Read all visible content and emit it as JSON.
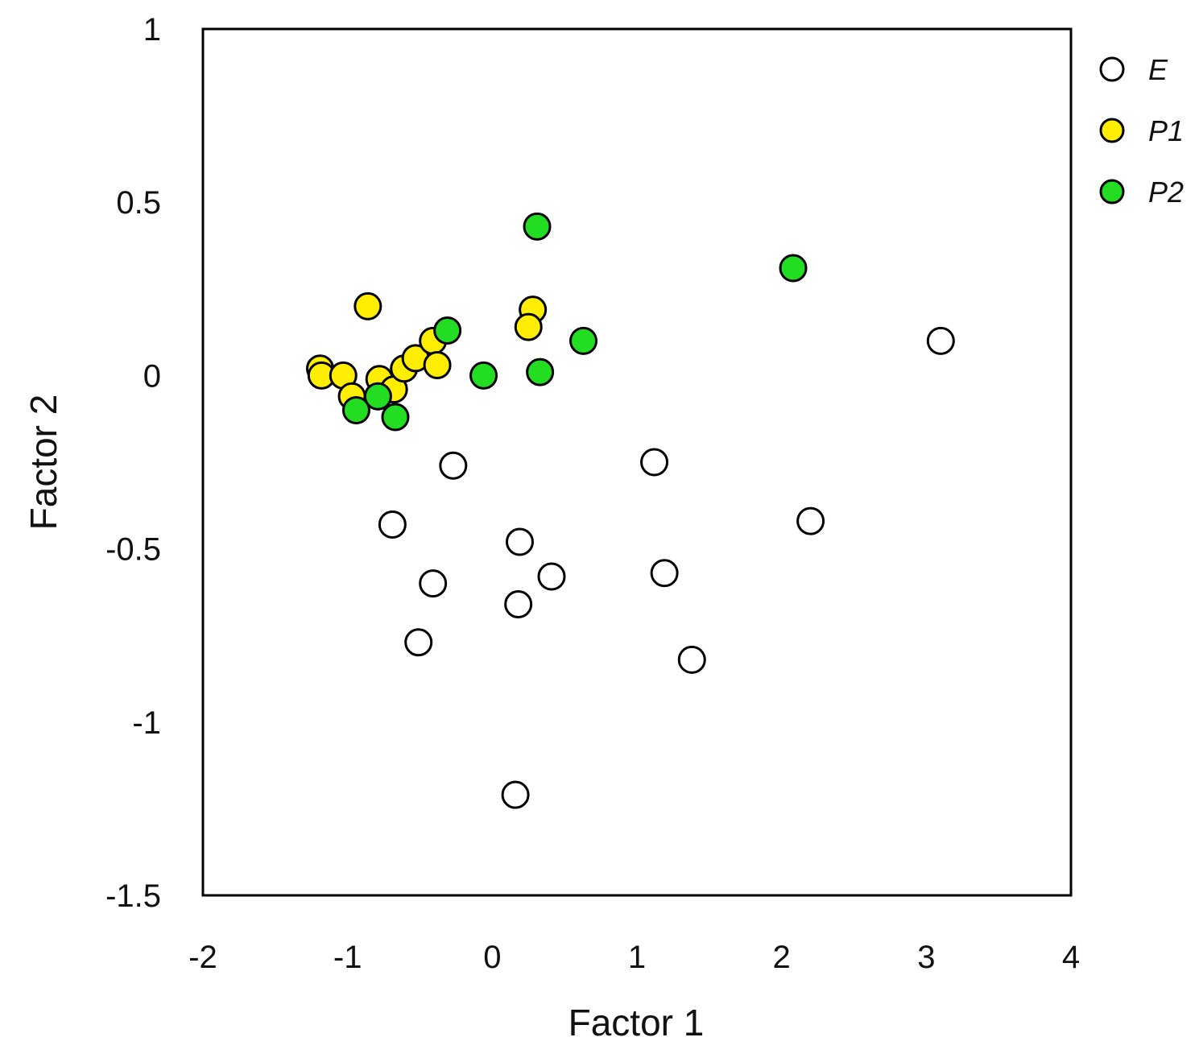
{
  "chart_data": {
    "type": "scatter",
    "title": "",
    "xlabel": "Factor 1",
    "ylabel": "Factor 2",
    "xlim": [
      -2,
      4
    ],
    "ylim": [
      -1.5,
      1
    ],
    "xticks": [
      "-2",
      "-1",
      "0",
      "1",
      "2",
      "3",
      "4"
    ],
    "yticks": [
      "1",
      "0.5",
      "0",
      "-0.5",
      "-1",
      "-1.5"
    ],
    "grid": false,
    "legend_position": "right",
    "series": [
      {
        "name": "E",
        "color": "#ffffff",
        "points": [
          [
            -0.27,
            -0.26
          ],
          [
            -0.69,
            -0.43
          ],
          [
            -0.41,
            -0.6
          ],
          [
            -0.51,
            -0.77
          ],
          [
            0.19,
            -0.48
          ],
          [
            0.18,
            -0.66
          ],
          [
            0.41,
            -0.58
          ],
          [
            0.16,
            -1.21
          ],
          [
            1.12,
            -0.25
          ],
          [
            1.19,
            -0.57
          ],
          [
            1.38,
            -0.82
          ],
          [
            2.2,
            -0.42
          ],
          [
            3.1,
            0.1
          ]
        ]
      },
      {
        "name": "P1",
        "color": "#ffee00",
        "points": [
          [
            -1.19,
            0.02
          ],
          [
            -1.18,
            0.0
          ],
          [
            -1.03,
            0.0
          ],
          [
            -0.97,
            -0.06
          ],
          [
            -0.78,
            -0.01
          ],
          [
            -0.68,
            -0.04
          ],
          [
            -0.61,
            0.02
          ],
          [
            -0.53,
            0.05
          ],
          [
            -0.41,
            0.1
          ],
          [
            -0.38,
            0.03
          ],
          [
            -0.86,
            0.2
          ],
          [
            0.28,
            0.19
          ],
          [
            0.25,
            0.14
          ]
        ]
      },
      {
        "name": "P2",
        "color": "#22dd22",
        "points": [
          [
            -0.94,
            -0.1
          ],
          [
            -0.79,
            -0.06
          ],
          [
            -0.67,
            -0.12
          ],
          [
            -0.31,
            0.13
          ],
          [
            -0.06,
            0.0
          ],
          [
            0.31,
            0.43
          ],
          [
            0.33,
            0.01
          ],
          [
            0.63,
            0.1
          ],
          [
            2.08,
            0.31
          ]
        ]
      }
    ]
  }
}
